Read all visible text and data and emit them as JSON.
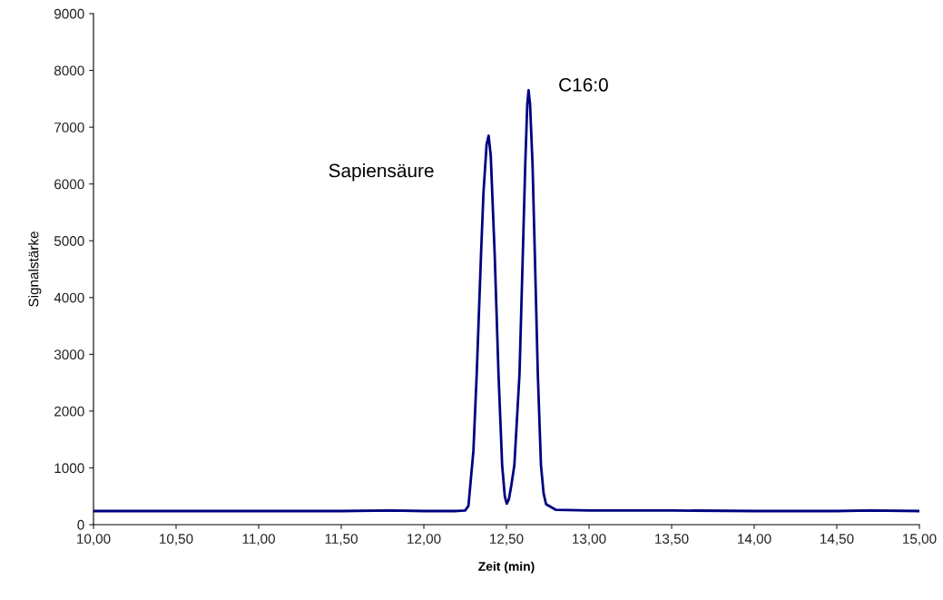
{
  "chart_data": {
    "type": "line",
    "xlabel": "Zeit (min)",
    "ylabel": "Signalstärke",
    "series": [
      {
        "color": "#000080",
        "x": [
          10.0,
          10.5,
          11.0,
          11.5,
          11.8,
          12.0,
          12.2,
          12.25,
          12.27,
          12.3,
          12.32,
          12.346,
          12.361,
          12.38,
          12.392,
          12.405,
          12.429,
          12.452,
          12.474,
          12.49,
          12.502,
          12.515,
          12.53,
          12.548,
          12.579,
          12.599,
          12.614,
          12.626,
          12.634,
          12.643,
          12.658,
          12.672,
          12.69,
          12.709,
          12.725,
          12.74,
          12.8,
          13.0,
          13.5,
          14.0,
          14.5,
          14.7,
          15.0
        ],
        "values": [
          240,
          240,
          240,
          240,
          250,
          240,
          240,
          250,
          330,
          1300,
          2650,
          4750,
          5850,
          6700,
          6850,
          6500,
          4750,
          2650,
          1050,
          500,
          370,
          450,
          700,
          1050,
          2650,
          4750,
          6350,
          7400,
          7650,
          7400,
          6350,
          4750,
          2650,
          1050,
          550,
          360,
          260,
          250,
          250,
          240,
          240,
          250,
          240
        ]
      }
    ],
    "annotations": [
      "Sapiensäure",
      "C16:0"
    ],
    "xlim": [
      10,
      15
    ],
    "xticks": [
      {
        "value": 10,
        "label": "10,00"
      },
      {
        "value": 10.5,
        "label": "10,50"
      },
      {
        "value": 11,
        "label": "11,00"
      },
      {
        "value": 11.5,
        "label": "11,50"
      },
      {
        "value": 12,
        "label": "12,00"
      },
      {
        "value": 12.5,
        "label": "12,50"
      },
      {
        "value": 13,
        "label": "13,00"
      },
      {
        "value": 13.5,
        "label": "13,50"
      },
      {
        "value": 14,
        "label": "14,00"
      },
      {
        "value": 14.5,
        "label": "14,50"
      },
      {
        "value": 15,
        "label": "15,00"
      }
    ],
    "ylim": [
      0,
      9000
    ],
    "yticks": [
      0,
      1000,
      2000,
      3000,
      4000,
      5000,
      6000,
      7000,
      8000,
      9000
    ],
    "grid": false,
    "legend": false
  }
}
